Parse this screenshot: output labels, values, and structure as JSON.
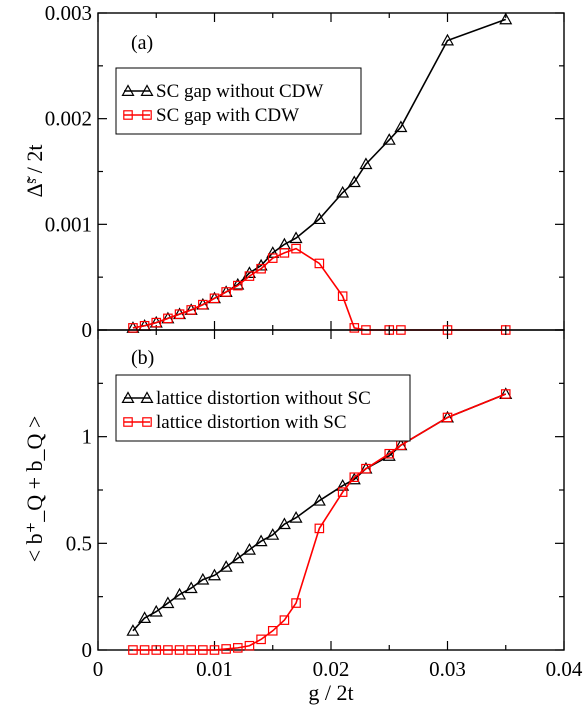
{
  "chart_data": [
    {
      "type": "line",
      "panel_label": "(a)",
      "ylabel": "Δ̃ˢ / 2t",
      "xlim": [
        0,
        0.04
      ],
      "ylim": [
        0,
        0.003
      ],
      "yticks": [
        0,
        0.001,
        0.002,
        0.003
      ],
      "yticklabels": [
        "0",
        "0.001",
        "0.002",
        "0.003"
      ],
      "legend_position": "upper-left",
      "series": [
        {
          "name": "SC gap without CDW",
          "color": "#000000",
          "marker": "triangle",
          "x": [
            0.003,
            0.004,
            0.005,
            0.006,
            0.007,
            0.008,
            0.009,
            0.01,
            0.011,
            0.012,
            0.013,
            0.014,
            0.015,
            0.016,
            0.017,
            0.019,
            0.021,
            0.022,
            0.023,
            0.025,
            0.026,
            0.03,
            0.035
          ],
          "y": [
            2e-05,
            4e-05,
            7e-05,
            0.00011,
            0.00015,
            0.00019,
            0.00024,
            0.0003,
            0.00036,
            0.00043,
            0.00054,
            0.00061,
            0.00073,
            0.00081,
            0.00087,
            0.00105,
            0.0013,
            0.0014,
            0.00157,
            0.0018,
            0.00192,
            0.00274,
            0.00294
          ]
        },
        {
          "name": "SC gap with CDW",
          "color": "#ff0000",
          "marker": "square",
          "x": [
            0.003,
            0.004,
            0.005,
            0.006,
            0.007,
            0.008,
            0.009,
            0.01,
            0.011,
            0.012,
            0.013,
            0.014,
            0.015,
            0.016,
            0.017,
            0.019,
            0.021,
            0.022,
            0.023,
            0.025,
            0.026,
            0.03,
            0.035
          ],
          "y": [
            2e-05,
            4e-05,
            7e-05,
            0.00011,
            0.00015,
            0.00019,
            0.00024,
            0.0003,
            0.00036,
            0.00042,
            0.00051,
            0.00058,
            0.00068,
            0.00073,
            0.00077,
            0.00063,
            0.00032,
            2e-05,
            0,
            0,
            0,
            0,
            0
          ]
        }
      ]
    },
    {
      "type": "line",
      "panel_label": "(b)",
      "ylabel": "< b⁺_Q + b_Q >",
      "xlabel": "g / 2t",
      "xlim": [
        0,
        0.04
      ],
      "ylim": [
        0,
        1.5
      ],
      "xticks": [
        0,
        0.01,
        0.02,
        0.03,
        0.04
      ],
      "xticklabels": [
        "0",
        "0.01",
        "0.02",
        "0.03",
        "0.04"
      ],
      "yticks": [
        0,
        0.5,
        1
      ],
      "yticklabels": [
        "0",
        "0.5",
        "1"
      ],
      "legend_position": "upper-left",
      "series": [
        {
          "name": "lattice distortion without SC",
          "color": "#000000",
          "marker": "triangle",
          "x": [
            0.003,
            0.004,
            0.005,
            0.006,
            0.007,
            0.008,
            0.009,
            0.01,
            0.011,
            0.012,
            0.013,
            0.014,
            0.015,
            0.016,
            0.017,
            0.019,
            0.021,
            0.022,
            0.023,
            0.025,
            0.026,
            0.03,
            0.035
          ],
          "y": [
            0.09,
            0.15,
            0.18,
            0.22,
            0.26,
            0.29,
            0.33,
            0.35,
            0.39,
            0.43,
            0.47,
            0.51,
            0.54,
            0.59,
            0.62,
            0.7,
            0.77,
            0.8,
            0.85,
            0.91,
            0.96,
            1.09,
            1.2
          ]
        },
        {
          "name": "lattice distortion with SC",
          "color": "#ff0000",
          "marker": "square",
          "x": [
            0.003,
            0.004,
            0.005,
            0.006,
            0.007,
            0.008,
            0.009,
            0.01,
            0.011,
            0.012,
            0.013,
            0.014,
            0.015,
            0.016,
            0.017,
            0.019,
            0.021,
            0.022,
            0.023,
            0.025,
            0.026,
            0.03,
            0.035
          ],
          "y": [
            0,
            0,
            0,
            0,
            0,
            0,
            0,
            0,
            0.005,
            0.01,
            0.02,
            0.05,
            0.09,
            0.14,
            0.22,
            0.57,
            0.74,
            0.81,
            0.85,
            0.92,
            0.96,
            1.09,
            1.2
          ]
        }
      ]
    }
  ]
}
